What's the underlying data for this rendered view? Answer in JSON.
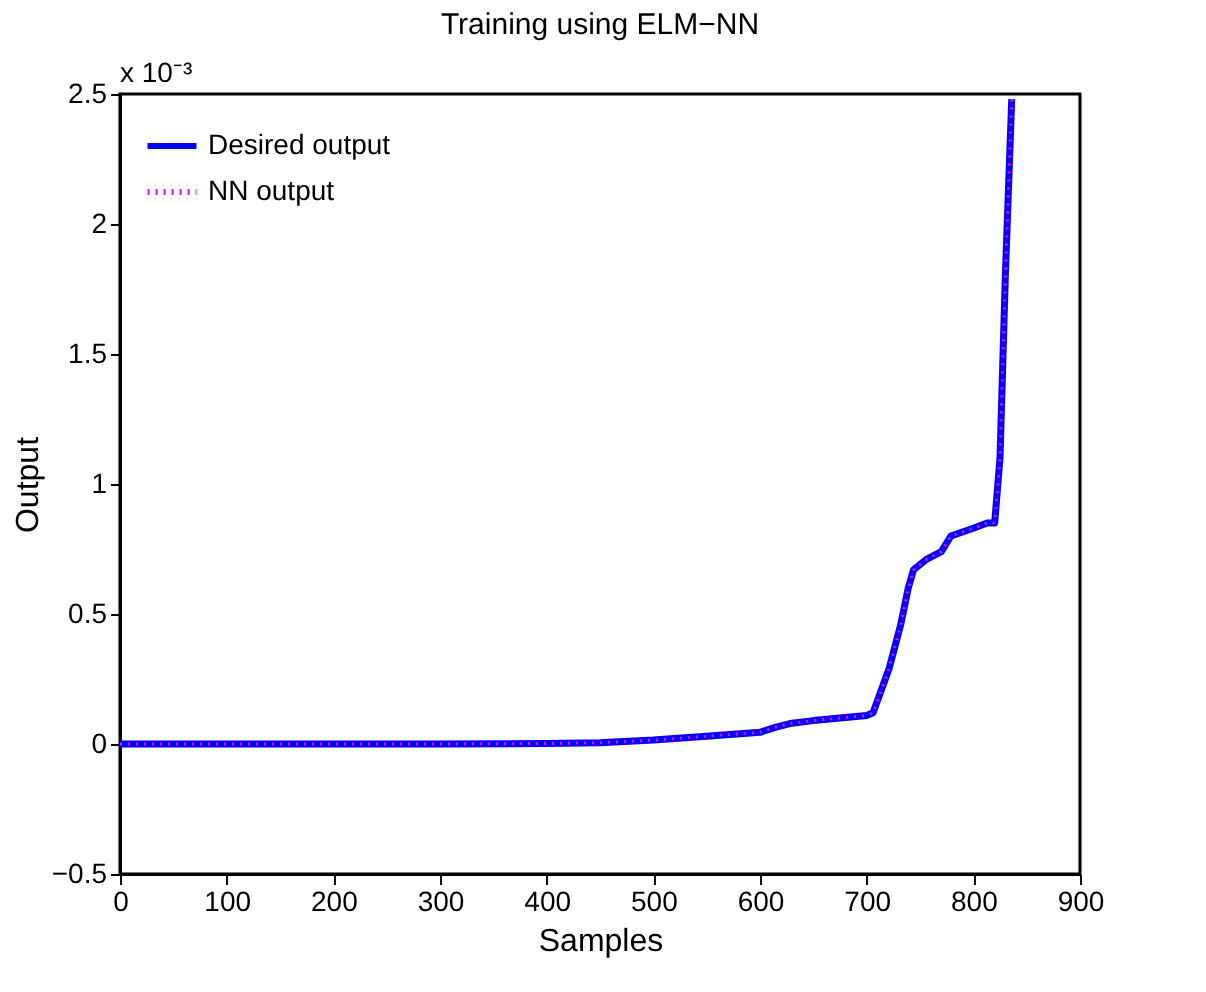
{
  "chart_data": {
    "type": "line",
    "title": "Training using ELM−NN",
    "xlabel": "Samples",
    "ylabel": "Output",
    "annotations": [
      "x 10⁻³"
    ],
    "x": [
      0,
      100,
      200,
      300,
      400,
      450,
      500,
      550,
      600,
      615,
      630,
      650,
      700,
      706,
      721,
      732,
      739,
      744,
      756,
      770,
      779,
      800,
      813,
      820,
      825,
      830,
      836
    ],
    "series": [
      {
        "name": "Desired output",
        "color": "#0000ff",
        "line_style": "solid",
        "values": [
          0,
          0,
          0,
          0,
          0.002,
          0.005,
          0.015,
          0.03,
          0.045,
          0.065,
          0.08,
          0.09,
          0.11,
          0.12,
          0.29,
          0.46,
          0.6,
          0.67,
          0.71,
          0.74,
          0.8,
          0.83,
          0.85,
          0.85,
          1.1,
          1.8,
          2.48
        ]
      },
      {
        "name": "NN output",
        "color": "#ff00ff",
        "line_style": "dotted",
        "values": [
          0,
          0,
          0,
          0,
          0.002,
          0.005,
          0.015,
          0.03,
          0.045,
          0.065,
          0.08,
          0.09,
          0.11,
          0.12,
          0.29,
          0.46,
          0.6,
          0.67,
          0.71,
          0.74,
          0.8,
          0.83,
          0.85,
          0.85,
          1.1,
          1.8,
          2.48
        ]
      }
    ],
    "xlim": [
      0,
      900
    ],
    "xticks": [
      0,
      100,
      200,
      300,
      400,
      500,
      600,
      700,
      800,
      900
    ],
    "ylim": [
      -0.5,
      2.5
    ],
    "yticks": [
      {
        "value": -0.5,
        "label": "−0.5"
      },
      0,
      0.5,
      1,
      1.5,
      2,
      2.5
    ],
    "grid": false,
    "legend": "top left",
    "marker": "none"
  }
}
